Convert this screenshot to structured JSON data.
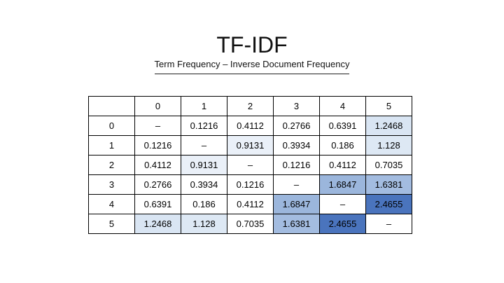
{
  "slide": {
    "title": "TF-IDF",
    "subtitle": "Term Frequency – Inverse Document Frequency"
  },
  "table": {
    "corner": "",
    "column_headers": [
      "0",
      "1",
      "2",
      "3",
      "4",
      "5"
    ],
    "rows": [
      {
        "label": "0",
        "cells": [
          "–",
          "0.1216",
          "0.4112",
          "0.2766",
          "0.6391",
          "1.2468"
        ]
      },
      {
        "label": "1",
        "cells": [
          "0.1216",
          "–",
          "0.9131",
          "0.3934",
          "0.186",
          "1.128"
        ]
      },
      {
        "label": "2",
        "cells": [
          "0.4112",
          "0.9131",
          "–",
          "0.1216",
          "0.4112",
          "0.7035"
        ]
      },
      {
        "label": "3",
        "cells": [
          "0.2766",
          "0.3934",
          "0.1216",
          "–",
          "1.6847",
          "1.6381"
        ]
      },
      {
        "label": "4",
        "cells": [
          "0.6391",
          "0.186",
          "0.4112",
          "1.6847",
          "–",
          "2.4655"
        ]
      },
      {
        "label": "5",
        "cells": [
          "1.2468",
          "1.128",
          "0.7035",
          "1.6381",
          "2.4655",
          "–"
        ]
      }
    ],
    "heat_colors": {
      "1.2468": "#d9e5f3",
      "1.128": "#dde8f4",
      "0.9131": "#eaf0f8",
      "1.6847": "#9bb6dc",
      "1.6381": "#a3bce0",
      "2.4655": "#4a74bd"
    }
  }
}
